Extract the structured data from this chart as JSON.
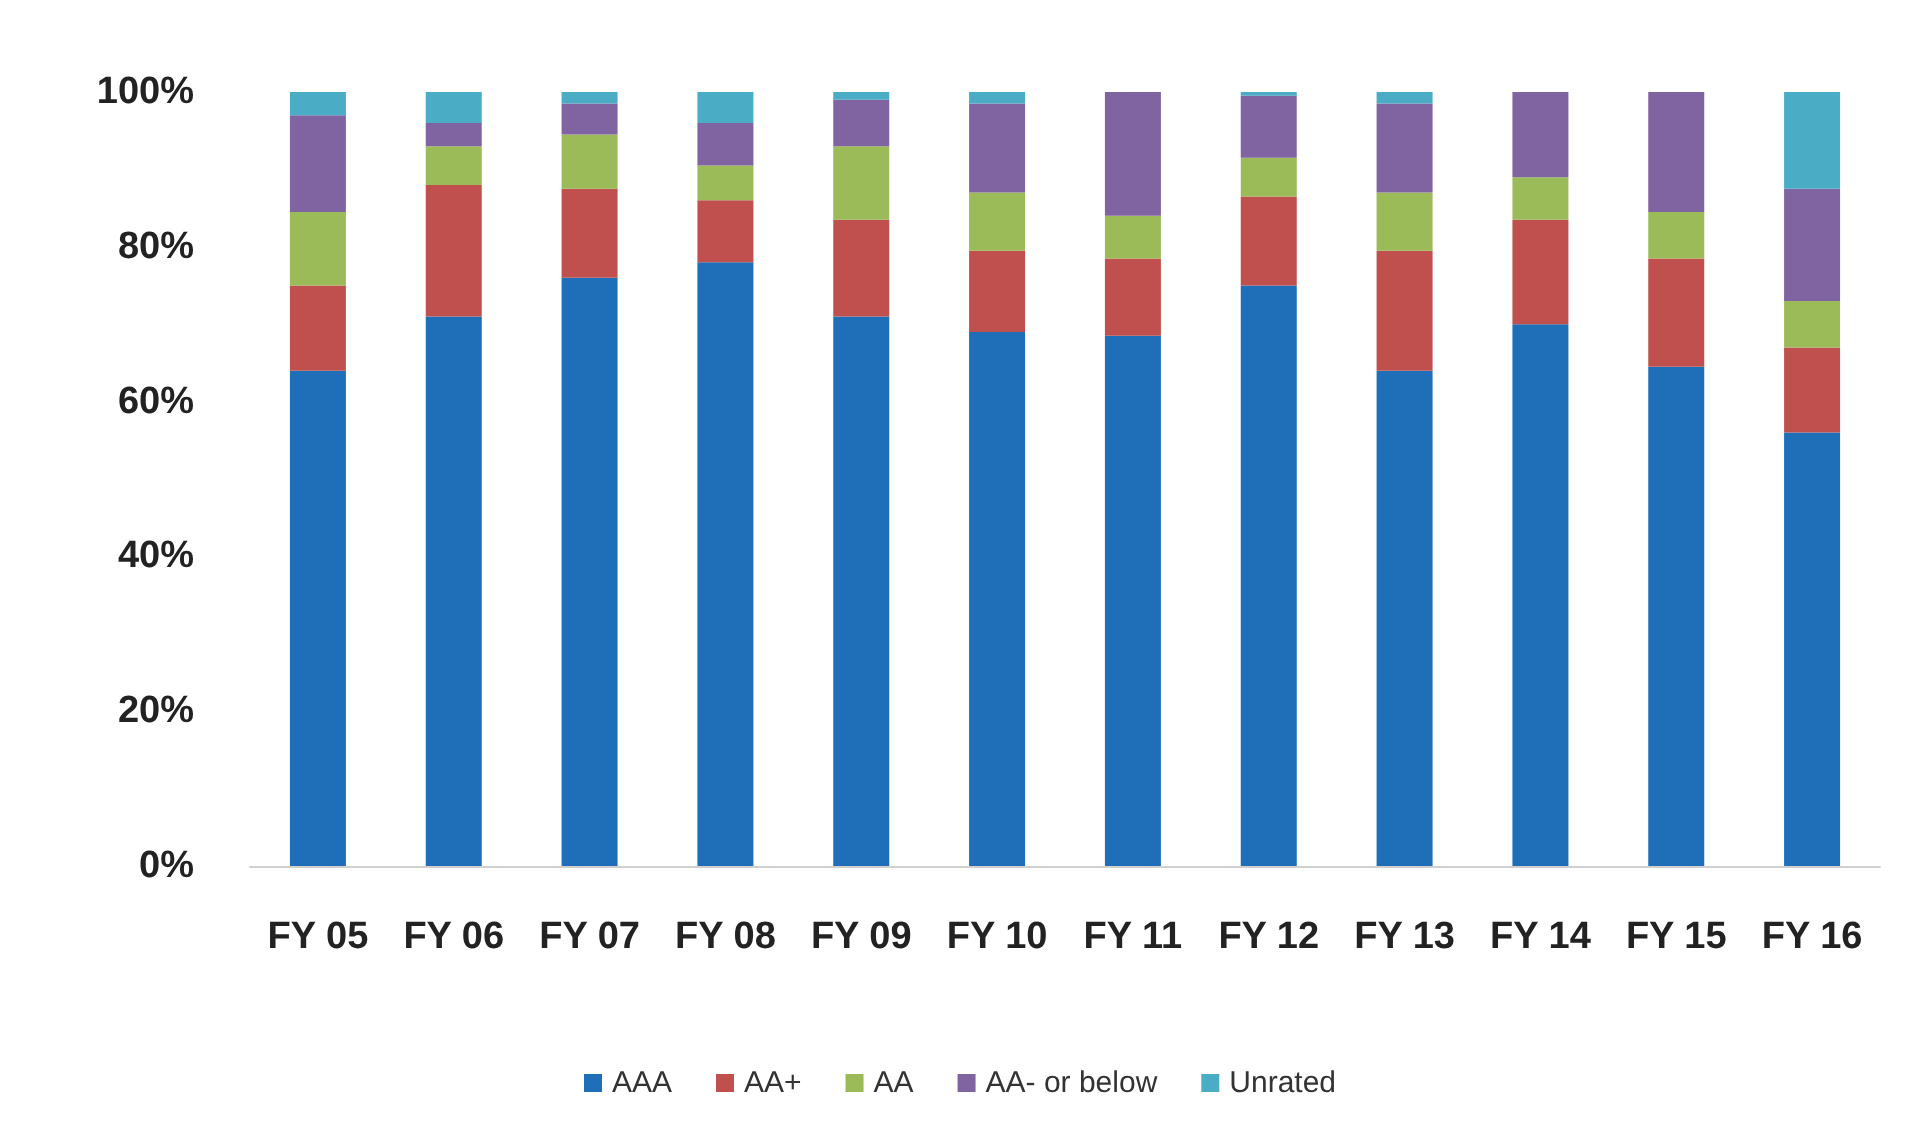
{
  "chart_data": {
    "type": "bar",
    "stacked": true,
    "categories": [
      "FY 05",
      "FY 06",
      "FY 07",
      "FY 08",
      "FY 09",
      "FY 10",
      "FY 11",
      "FY 12",
      "FY 13",
      "FY 14",
      "FY 15",
      "FY 16"
    ],
    "series": [
      {
        "name": "AAA",
        "color": "#1f6fb8",
        "values": [
          64,
          71,
          76,
          78,
          71,
          69,
          68.5,
          75,
          64,
          70,
          64.5,
          56
        ]
      },
      {
        "name": "AA+",
        "color": "#c0504d",
        "values": [
          11,
          17,
          11.5,
          8,
          12.5,
          10.5,
          10,
          11.5,
          15.5,
          13.5,
          14,
          11
        ]
      },
      {
        "name": "AA",
        "color": "#9bbb59",
        "values": [
          9.5,
          5,
          7,
          4.5,
          9.5,
          7.5,
          5.5,
          5,
          7.5,
          5.5,
          6,
          6
        ]
      },
      {
        "name": "AA- or below",
        "color": "#8064a2",
        "values": [
          12.5,
          3,
          4,
          5.5,
          6,
          11.5,
          16,
          8,
          11.5,
          11,
          15.5,
          14.5
        ]
      },
      {
        "name": "Unrated",
        "color": "#4bacc6",
        "values": [
          3,
          4,
          1.5,
          4,
          1,
          1.5,
          0,
          0.5,
          1.5,
          0,
          0,
          12.5
        ]
      }
    ],
    "ylim": [
      0,
      100
    ],
    "yticks": [
      {
        "value": 0,
        "label": "0%"
      },
      {
        "value": 20,
        "label": "20%"
      },
      {
        "value": 40,
        "label": "40%"
      },
      {
        "value": 60,
        "label": "60%"
      },
      {
        "value": 80,
        "label": "80%"
      },
      {
        "value": 100,
        "label": "100%"
      }
    ],
    "grid": false,
    "legend": "bottom"
  }
}
